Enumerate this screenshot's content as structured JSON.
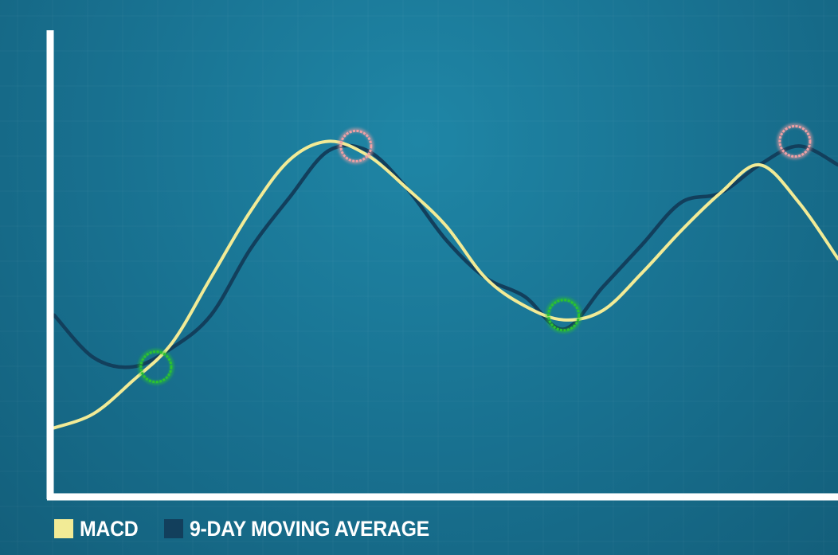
{
  "chart_data": {
    "type": "line",
    "title": "",
    "xlabel": "",
    "ylabel": "",
    "xlim": [
      0,
      100
    ],
    "ylim": [
      0,
      100
    ],
    "grid": true,
    "legend_position": "bottom-left",
    "series": [
      {
        "name": "MACD",
        "color": "#f2eb96",
        "x": [
          0,
          5,
          10,
          15,
          20,
          25,
          30,
          35,
          40,
          45,
          50,
          55,
          60,
          65,
          70,
          75,
          80,
          85,
          90,
          95,
          100
        ],
        "y": [
          14,
          17,
          24,
          32,
          46,
          60,
          71,
          75,
          72,
          65,
          57,
          46,
          40,
          37,
          39,
          47,
          56,
          64,
          70,
          62,
          50
        ]
      },
      {
        "name": "9-DAY MOVING AVERAGE",
        "color": "#123f5c",
        "x": [
          0,
          5,
          10,
          15,
          20,
          25,
          30,
          35,
          40,
          45,
          50,
          55,
          60,
          65,
          70,
          75,
          80,
          85,
          90,
          95,
          100
        ],
        "y": [
          38,
          29,
          27,
          31,
          38,
          52,
          63,
          73,
          73,
          65,
          54,
          46,
          42,
          35,
          44,
          53,
          62,
          64,
          70,
          74,
          70
        ]
      }
    ],
    "markers": [
      {
        "type": "bullish-crossover",
        "color": "#2bc230",
        "x": 13,
        "y": 27
      },
      {
        "type": "bearish-crossover",
        "color": "#f0a0a4",
        "x": 38.5,
        "y": 74
      },
      {
        "type": "bullish-crossover",
        "color": "#2bc230",
        "x": 65,
        "y": 38
      },
      {
        "type": "bearish-crossover",
        "color": "#f0a0a4",
        "x": 94.5,
        "y": 75
      }
    ]
  }
}
